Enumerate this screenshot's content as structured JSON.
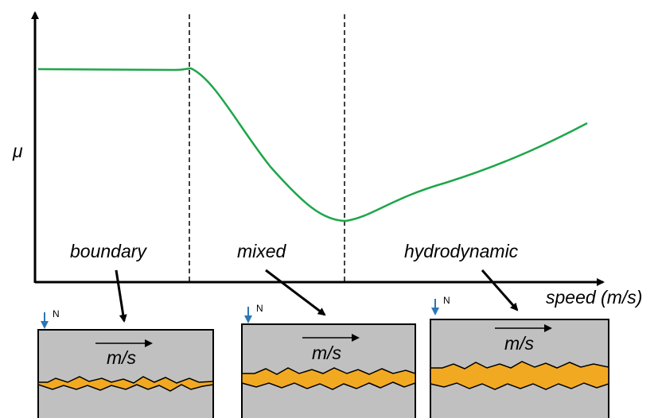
{
  "axes": {
    "y_label": "μ",
    "x_label": "speed (m/s)"
  },
  "regimes": [
    {
      "label": "boundary",
      "load": "N",
      "velocity": "m/s"
    },
    {
      "label": "mixed",
      "load": "N",
      "velocity": "m/s"
    },
    {
      "label": "hydrodynamic",
      "load": "N",
      "velocity": "m/s"
    }
  ]
}
